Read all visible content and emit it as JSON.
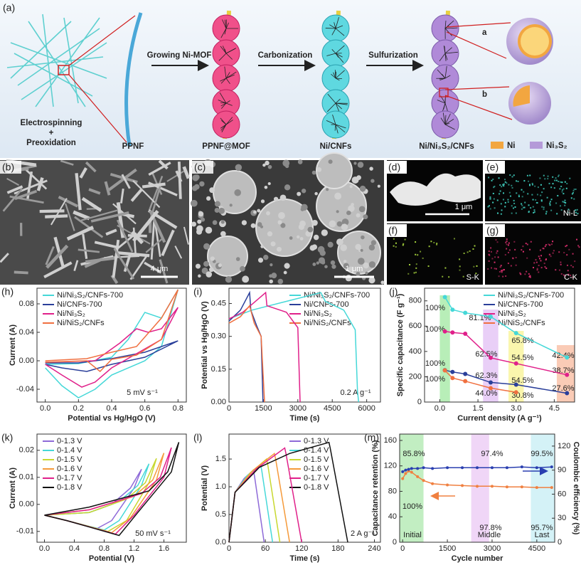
{
  "figure": {
    "panel_labels": [
      "(a)",
      "(b)",
      "(c)",
      "(d)",
      "(e)",
      "(f)",
      "(g)"
    ],
    "schematic": {
      "start": [
        "Electrospinning",
        "+",
        "Preoxidation"
      ],
      "fiber": "PPNF",
      "arrows": [
        "Growing Ni-MOF",
        "Carbonization",
        "Sulfurization"
      ],
      "products": [
        "PPNF@MOF",
        "Ni/CNFs",
        "Ni/Ni₃S₂/CNFs"
      ],
      "zoom_labels": [
        "a",
        "b"
      ],
      "legend": [
        "Ni",
        "Ni₃S₂"
      ]
    },
    "micrographs": {
      "scale_bars": [
        "4 μm",
        "1 μm",
        "1 μm"
      ],
      "maps": [
        "Ni-L",
        "S-K",
        "C-K"
      ]
    }
  },
  "chart_data": [
    {
      "type": "line",
      "panel": "(h)",
      "x_label": "Potential vs Hg/HgO (V)",
      "y_label": "Current (A)",
      "annotation": "5 mV s⁻¹",
      "xlim": [
        -0.05,
        0.85
      ],
      "xticks": [
        {
          "value": 0,
          "label": "0.0"
        },
        0.2,
        0.4,
        0.6,
        0.8
      ],
      "ylim": [
        -0.058,
        0.102
      ],
      "yticks": [
        -0.04,
        {
          "value": 0,
          "label": "0.00"
        },
        0.04,
        0.08
      ],
      "legend": "upper left",
      "series": [
        {
          "name": "Ni/Ni₃S₂/CNFs-700",
          "color": "#45d8d8",
          "x": [
            0,
            0.2,
            0.4,
            0.5,
            0.6,
            0.7,
            0.8,
            0.7,
            0.6,
            0.4,
            0.3,
            0.2,
            0.1,
            0
          ],
          "values": [
            -0.005,
            -0.004,
            0.005,
            0.03,
            0.068,
            0.06,
            0.1,
            0.02,
            0.0,
            -0.02,
            -0.04,
            -0.052,
            -0.035,
            -0.01
          ]
        },
        {
          "name": "Ni/CNFs-700",
          "color": "#2a3f9a",
          "x": [
            0,
            0.2,
            0.4,
            0.6,
            0.8,
            0.6,
            0.4,
            0.25,
            0.1,
            0
          ],
          "values": [
            -0.003,
            -0.003,
            0.003,
            0.012,
            0.028,
            0.005,
            -0.005,
            -0.015,
            -0.01,
            -0.005
          ]
        },
        {
          "name": "Ni/Ni₃S₂",
          "color": "#e0208a",
          "x": [
            0,
            0.3,
            0.45,
            0.55,
            0.62,
            0.7,
            0.8,
            0.7,
            0.55,
            0.4,
            0.3,
            0.22,
            0.1,
            0
          ],
          "values": [
            -0.002,
            0.0,
            0.025,
            0.045,
            0.04,
            0.045,
            0.075,
            0.03,
            0.01,
            -0.01,
            -0.03,
            -0.037,
            -0.02,
            -0.005
          ]
        },
        {
          "name": "Ni/NiS₂/CNFs",
          "color": "#f07040",
          "x": [
            0,
            0.25,
            0.4,
            0.55,
            0.7,
            0.8,
            0.7,
            0.55,
            0.4,
            0.33,
            0.25,
            0
          ],
          "values": [
            0.0,
            0.003,
            0.012,
            0.02,
            0.06,
            0.1,
            0.03,
            0.008,
            0.002,
            -0.015,
            0.0,
            -0.002
          ]
        }
      ]
    },
    {
      "type": "line",
      "panel": "(i)",
      "x_label": "Time (s)",
      "y_label": "Potential vs Hg/HgO (V)",
      "annotation": "0.2 A g⁻¹",
      "xlim": [
        0,
        6600
      ],
      "xticks": [
        0,
        1500,
        3000,
        4500,
        6000
      ],
      "ylim": [
        0,
        0.52
      ],
      "yticks": [
        {
          "value": 0,
          "label": "0.00"
        },
        0.15,
        {
          "value": 0.3,
          "label": "0.30"
        },
        0.45
      ],
      "legend": "upper right",
      "series": [
        {
          "name": "Ni/Ni₃S₂/CNFs-700",
          "color": "#45d8d8",
          "x": [
            0,
            1000,
            2500,
            4000,
            4200,
            5000,
            5500,
            5600,
            5650
          ],
          "values": [
            0.38,
            0.42,
            0.46,
            0.5,
            0.46,
            0.42,
            0.33,
            0.05,
            0
          ]
        },
        {
          "name": "Ni/CNFs-700",
          "color": "#2a3f9a",
          "x": [
            0,
            500,
            900,
            950,
            1200,
            1400,
            1480
          ],
          "values": [
            0.37,
            0.42,
            0.5,
            0.42,
            0.35,
            0.3,
            0
          ]
        },
        {
          "name": "Ni/Ni₃S₂",
          "color": "#e0208a",
          "x": [
            0,
            600,
            1600,
            1650,
            2500,
            3000,
            3100
          ],
          "values": [
            0.38,
            0.41,
            0.5,
            0.44,
            0.41,
            0.34,
            0
          ]
        },
        {
          "name": "Ni/NiS₂/CNFs",
          "color": "#f07040",
          "x": [
            0,
            500,
            900,
            1100,
            1400,
            1550
          ],
          "values": [
            0.36,
            0.39,
            0.44,
            0.36,
            0.3,
            0
          ]
        }
      ]
    },
    {
      "type": "line",
      "panel": "(j)",
      "x_label": "Current density (A g⁻¹)",
      "y_label": "Specific capacitance (F g⁻¹)",
      "markers": true,
      "xlim": [
        -0.6,
        5.3
      ],
      "xticks": [
        {
          "value": 0,
          "label": "0.0"
        },
        1.5,
        {
          "value": 3,
          "label": "3.0"
        },
        4.5
      ],
      "ylim": [
        0,
        900
      ],
      "yticks": [
        0,
        200,
        400,
        600,
        800
      ],
      "legend": "upper right",
      "x": [
        0.2,
        0.5,
        1,
        2,
        3,
        5
      ],
      "series": [
        {
          "name": "Ni/Ni₃S₂/CNFs-700",
          "color": "#45d8d8",
          "values": [
            830,
            730,
            705,
            675,
            545,
            352
          ]
        },
        {
          "name": "Ni/CNFs-700",
          "color": "#2a3f9a",
          "values": [
            252,
            238,
            222,
            155,
            138,
            70
          ]
        },
        {
          "name": "Ni/Ni₃S₂",
          "color": "#e0208a",
          "values": [
            558,
            550,
            540,
            350,
            305,
            215
          ]
        },
        {
          "name": "Ni/NiS₂/CNFs",
          "color": "#f07040",
          "values": [
            250,
            190,
            165,
            110,
            77,
            null
          ]
        }
      ],
      "annotations": [
        "100%",
        "100%",
        "100%",
        "100%",
        "81.1%",
        "62.5%",
        "65.8%",
        "54.5%",
        "62.3%",
        "54.5%",
        "44.0%",
        "30.8%",
        "42.4%",
        "38.7%",
        "27.6%"
      ]
    },
    {
      "type": "line",
      "panel": "(k)",
      "x_label": "Potential (V)",
      "y_label": "Current (A)",
      "annotation": "50 mV s⁻¹",
      "xlim": [
        -0.1,
        1.9
      ],
      "xticks": [
        {
          "value": 0,
          "label": "0.0"
        },
        0.4,
        0.8,
        1.2,
        1.6
      ],
      "ylim": [
        -0.014,
        0.026
      ],
      "yticks": [
        -0.01,
        {
          "value": 0,
          "label": "0.00"
        },
        0.01,
        0.02
      ],
      "legend": "upper left",
      "series": [
        {
          "name": "0-1.3 V",
          "color": "#8e6ad8",
          "x": [
            0,
            0.6,
            0.9,
            1.15,
            1.3,
            1.2,
            0.9,
            0.7,
            0.3,
            0
          ],
          "values": [
            -0.004,
            -0.003,
            0.0,
            0.006,
            0.013,
            0.006,
            -0.006,
            -0.009,
            -0.006,
            -0.004
          ]
        },
        {
          "name": "0-1.4 V",
          "color": "#45d8d8",
          "x": [
            0,
            0.6,
            1.0,
            1.25,
            1.4,
            1.3,
            1.0,
            0.8,
            0.3,
            0
          ],
          "values": [
            -0.004,
            -0.003,
            0.001,
            0.007,
            0.015,
            0.007,
            -0.006,
            -0.0095,
            -0.006,
            -0.004
          ]
        },
        {
          "name": "0-1.5 V",
          "color": "#c8d830",
          "x": [
            0,
            0.6,
            1.1,
            1.35,
            1.5,
            1.4,
            1.1,
            0.85,
            0.3,
            0
          ],
          "values": [
            -0.004,
            -0.003,
            0.002,
            0.008,
            0.017,
            0.008,
            -0.006,
            -0.01,
            -0.006,
            -0.004
          ]
        },
        {
          "name": "0-1.6 V",
          "color": "#f59a3a",
          "x": [
            0,
            0.6,
            1.2,
            1.45,
            1.6,
            1.5,
            1.15,
            0.9,
            0.3,
            0
          ],
          "values": [
            -0.004,
            -0.002,
            0.003,
            0.009,
            0.019,
            0.009,
            -0.005,
            -0.0105,
            -0.006,
            -0.004
          ]
        },
        {
          "name": "0-1.7 V",
          "color": "#e0208a",
          "x": [
            0,
            0.6,
            1.3,
            1.55,
            1.7,
            1.6,
            1.2,
            0.95,
            0.3,
            0
          ],
          "values": [
            -0.004,
            -0.002,
            0.004,
            0.01,
            0.021,
            0.01,
            -0.004,
            -0.011,
            -0.006,
            -0.004
          ]
        },
        {
          "name": "0-1.8 V",
          "color": "#111111",
          "x": [
            0,
            0.6,
            1.4,
            1.65,
            1.8,
            1.7,
            1.25,
            1.0,
            0.3,
            0
          ],
          "values": [
            -0.004,
            -0.001,
            0.005,
            0.012,
            0.023,
            0.012,
            -0.003,
            -0.0115,
            -0.006,
            -0.004
          ]
        }
      ]
    },
    {
      "type": "line",
      "panel": "(l)",
      "x_label": "Time (s)",
      "y_label": "Potential (V)",
      "annotation": "2 A g⁻¹",
      "xlim": [
        0,
        250
      ],
      "xticks": [
        0,
        60,
        120,
        180,
        240
      ],
      "ylim": [
        0,
        1.95
      ],
      "yticks": [
        {
          "value": 0,
          "label": "0.0"
        },
        0.5,
        {
          "value": 1,
          "label": "1.0"
        },
        1.5
      ],
      "legend": "upper right",
      "series": [
        {
          "name": "0-1.3 V",
          "color": "#8e6ad8",
          "x": [
            0,
            10,
            25,
            40,
            42,
            58
          ],
          "values": [
            0,
            0.9,
            1.15,
            1.3,
            1.2,
            0
          ]
        },
        {
          "name": "0-1.4 V",
          "color": "#45d8d8",
          "x": [
            0,
            10,
            30,
            52,
            54,
            72
          ],
          "values": [
            0,
            0.9,
            1.2,
            1.4,
            1.3,
            0
          ]
        },
        {
          "name": "0-1.5 V",
          "color": "#c8d830",
          "x": [
            0,
            10,
            35,
            62,
            64,
            84
          ],
          "values": [
            0,
            0.9,
            1.25,
            1.5,
            1.4,
            0
          ]
        },
        {
          "name": "0-1.6 V",
          "color": "#f59a3a",
          "x": [
            0,
            10,
            40,
            75,
            77,
            100
          ],
          "values": [
            0,
            0.9,
            1.3,
            1.6,
            1.5,
            0
          ]
        },
        {
          "name": "0-1.7 V",
          "color": "#e0208a",
          "x": [
            0,
            10,
            45,
            92,
            94,
            120
          ],
          "values": [
            0,
            0.9,
            1.32,
            1.7,
            1.6,
            0
          ]
        },
        {
          "name": "0-1.8 V",
          "color": "#111111",
          "x": [
            0,
            10,
            50,
            100,
            165,
            167,
            196
          ],
          "values": [
            0,
            0.9,
            1.35,
            1.6,
            1.8,
            1.7,
            0
          ]
        }
      ]
    },
    {
      "type": "line",
      "panel": "(m)",
      "x_label": "Cycle number",
      "y_label": "Capacitance retention (%)",
      "y2_label": "Coulombic efficiency (%)",
      "markers": true,
      "xlim": [
        -100,
        5100
      ],
      "xticks": [
        0,
        1500,
        3000,
        4500
      ],
      "ylim": [
        0,
        170
      ],
      "yticks": [
        0,
        40,
        80,
        120,
        160
      ],
      "y2lim": [
        0,
        135
      ],
      "y2ticks": [
        0,
        30,
        60,
        90,
        120
      ],
      "x": [
        0,
        100,
        200,
        300,
        500,
        700,
        1000,
        1500,
        2000,
        2500,
        3000,
        3500,
        4000,
        4500,
        5000
      ],
      "series": [
        {
          "color": "#f08040",
          "values": [
            100,
            108,
            112,
            110,
            103,
            97,
            92,
            90,
            89,
            88,
            88,
            87,
            87,
            86,
            86
          ]
        },
        {
          "color": "#2a3fb0",
          "axis": "y2",
          "values": [
            88,
            90,
            91,
            92,
            92,
            93,
            92,
            93,
            93,
            93,
            93,
            93,
            94,
            93,
            94
          ]
        }
      ],
      "annotations": [
        "85.8%",
        "97.4%",
        "99.5%",
        "100%",
        "97.8%",
        "95.7%",
        "Initial",
        "Middle",
        "Last"
      ]
    }
  ]
}
